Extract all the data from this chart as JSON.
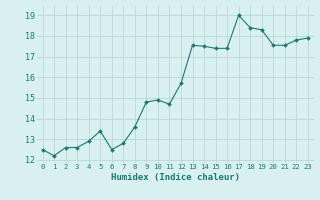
{
  "x": [
    0,
    1,
    2,
    3,
    4,
    5,
    6,
    7,
    8,
    9,
    10,
    11,
    12,
    13,
    14,
    15,
    16,
    17,
    18,
    19,
    20,
    21,
    22,
    23
  ],
  "y": [
    12.5,
    12.2,
    12.6,
    12.6,
    12.9,
    13.4,
    12.5,
    12.8,
    13.6,
    14.8,
    14.9,
    14.7,
    15.7,
    17.55,
    17.5,
    17.4,
    17.4,
    19.0,
    18.4,
    18.3,
    17.55,
    17.55,
    17.8,
    17.9
  ],
  "line_color": "#1a7a6e",
  "marker": "D",
  "marker_size": 2.0,
  "bg_color": "#d8f0f0",
  "grid_color": "#b8d8d8",
  "xlabel": "Humidex (Indice chaleur)",
  "xlim": [
    -0.5,
    23.5
  ],
  "ylim": [
    11.85,
    19.45
  ],
  "yticks": [
    12,
    13,
    14,
    15,
    16,
    17,
    18,
    19
  ],
  "xticks": [
    0,
    1,
    2,
    3,
    4,
    5,
    6,
    7,
    8,
    9,
    10,
    11,
    12,
    13,
    14,
    15,
    16,
    17,
    18,
    19,
    20,
    21,
    22,
    23
  ],
  "tick_color": "#1a7a6e",
  "label_color": "#1a7a6e",
  "xlabel_fontsize": 6.5,
  "xtick_fontsize": 5.2,
  "ytick_fontsize": 6.0
}
